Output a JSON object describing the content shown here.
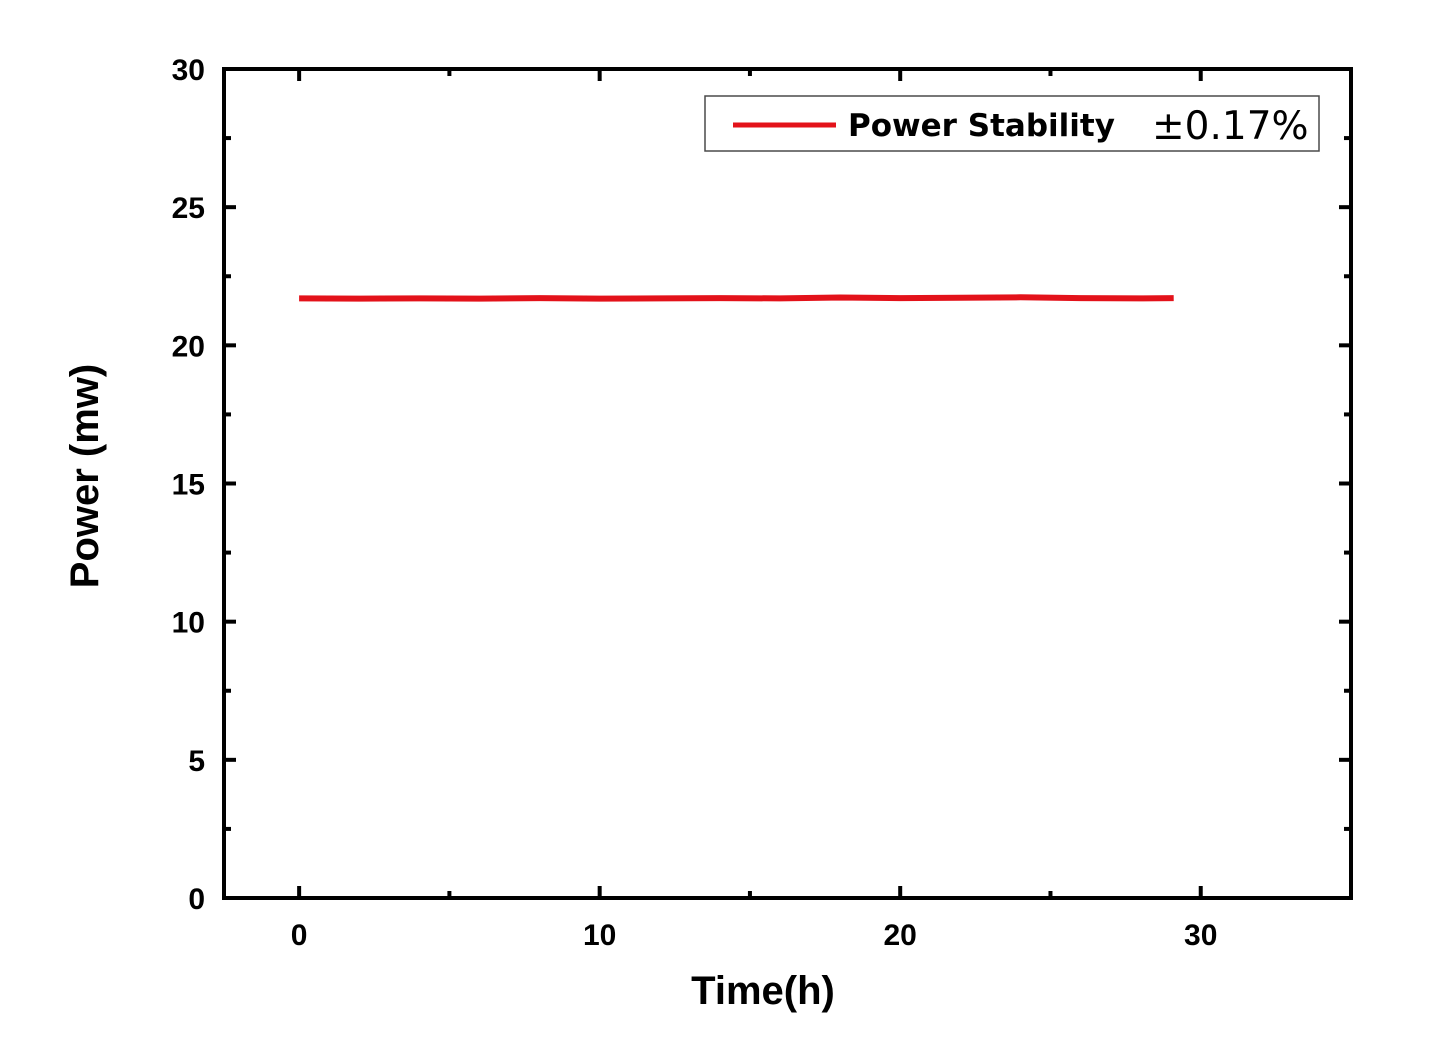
{
  "chart_data": {
    "type": "line",
    "title": "",
    "xlabel": "Time(h)",
    "ylabel": "Power (mw)",
    "xlim": [
      -2.5,
      35
    ],
    "ylim": [
      0,
      30
    ],
    "x_ticks": [
      0,
      10,
      20,
      30
    ],
    "y_ticks": [
      0,
      5,
      10,
      15,
      20,
      25,
      30
    ],
    "x_tick_labels": [
      "0",
      "10",
      "20",
      "30"
    ],
    "y_tick_labels": [
      "0",
      "5",
      "10",
      "15",
      "20",
      "25",
      "30"
    ],
    "grid": false,
    "legend_position": "top-right",
    "legend": {
      "label": "Power Stability",
      "value": "±0.17%"
    },
    "series": [
      {
        "name": "Power Stability",
        "color": "#e3121a",
        "x": [
          0,
          2,
          4,
          6,
          8,
          10,
          12,
          14,
          16,
          18,
          20,
          22,
          24,
          26,
          28,
          29.1
        ],
        "y": [
          21.7,
          21.69,
          21.7,
          21.69,
          21.71,
          21.69,
          21.7,
          21.71,
          21.7,
          21.73,
          21.71,
          21.72,
          21.74,
          21.71,
          21.7,
          21.71
        ]
      }
    ]
  }
}
